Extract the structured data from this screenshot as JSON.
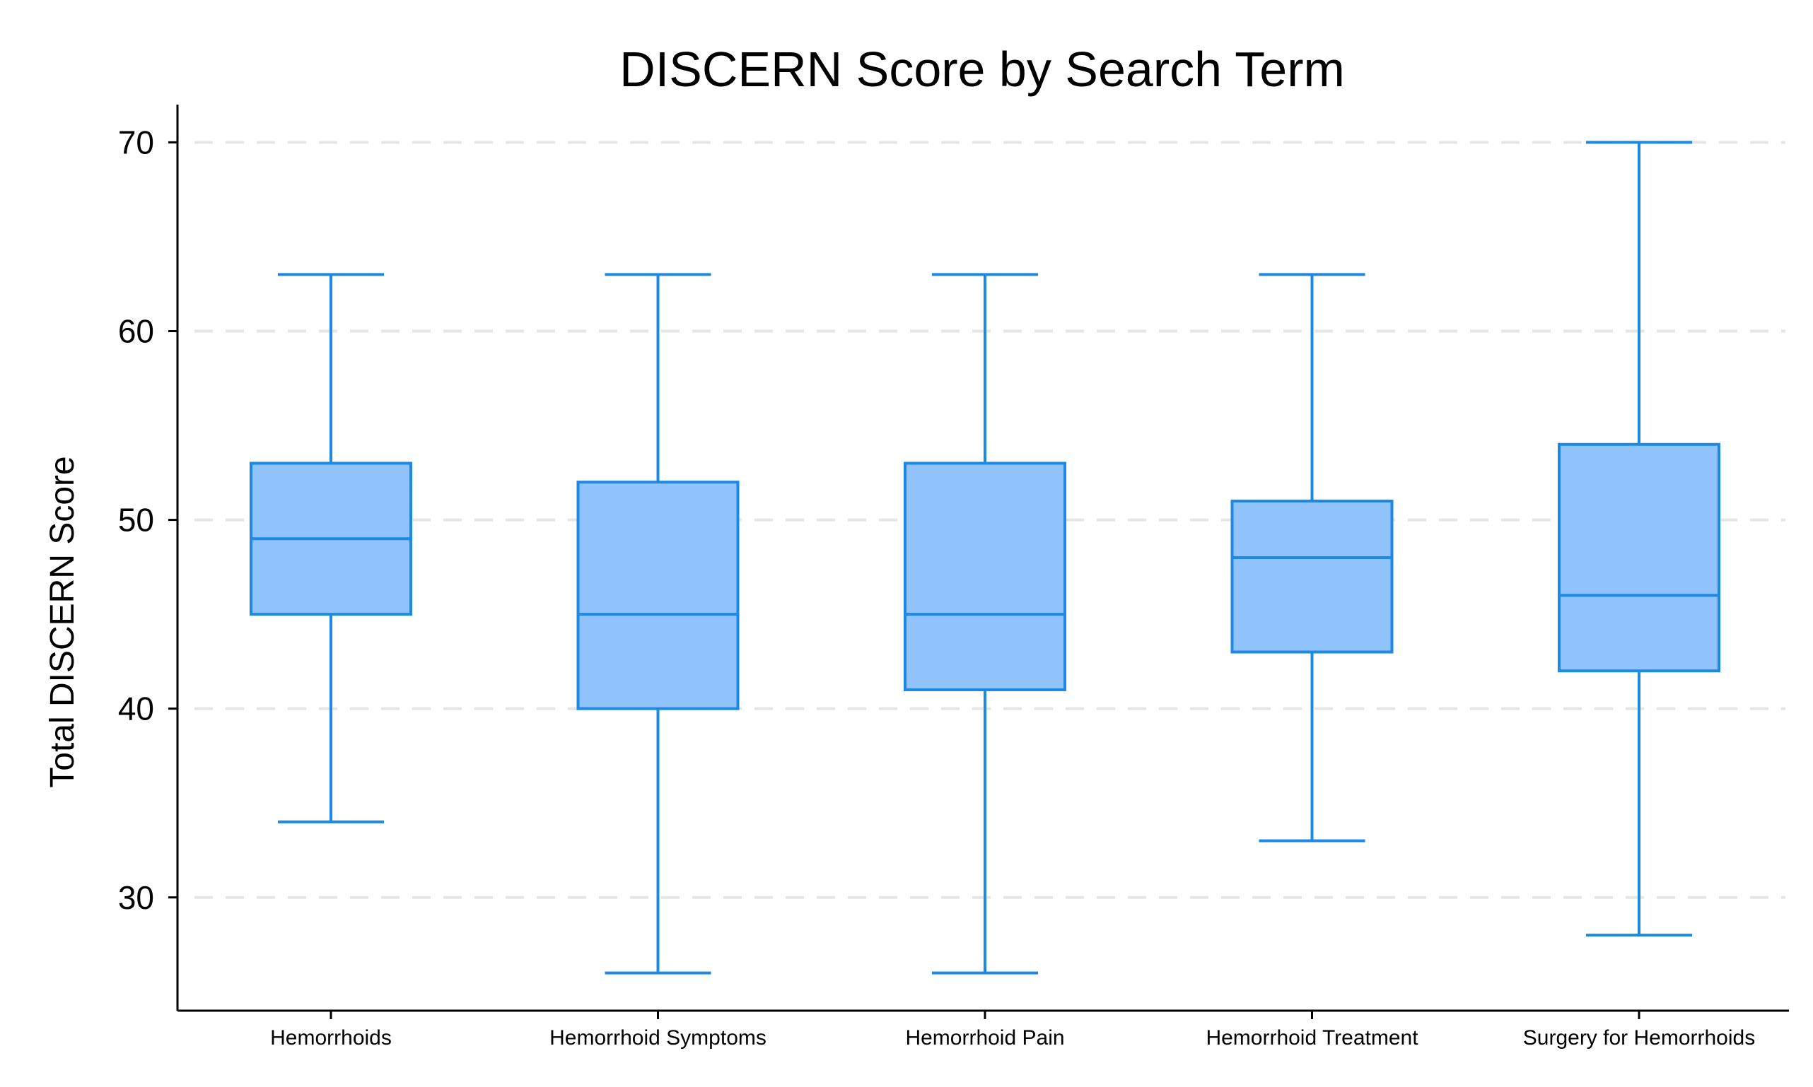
{
  "chart_data": {
    "type": "box",
    "title": "DISCERN Score by Search Term",
    "xlabel": "",
    "ylabel": "Total DISCERN Score",
    "ylim": [
      24,
      72
    ],
    "yticks": [
      30,
      40,
      50,
      60,
      70
    ],
    "grid": "horizontal-dashed",
    "colors": {
      "box_fill": "#90c2fb",
      "box_stroke": "#1e88e5",
      "grid": "#e6e6e6",
      "axis": "#000000"
    },
    "categories": [
      "Hemorrhoids",
      "Hemorrhoid Symptoms",
      "Hemorrhoid Pain",
      "Hemorrhoid Treatment",
      "Surgery for Hemorrhoids"
    ],
    "boxes": [
      {
        "category": "Hemorrhoids",
        "min": 34,
        "q1": 45,
        "median": 49,
        "q3": 53,
        "max": 63
      },
      {
        "category": "Hemorrhoid Symptoms",
        "min": 26,
        "q1": 40,
        "median": 45,
        "q3": 52,
        "max": 63
      },
      {
        "category": "Hemorrhoid Pain",
        "min": 26,
        "q1": 41,
        "median": 45,
        "q3": 53,
        "max": 63
      },
      {
        "category": "Hemorrhoid Treatment",
        "min": 33,
        "q1": 43,
        "median": 48,
        "q3": 51,
        "max": 63
      },
      {
        "category": "Surgery for Hemorrhoids",
        "min": 28,
        "q1": 42,
        "median": 46,
        "q3": 54,
        "max": 70
      }
    ]
  }
}
